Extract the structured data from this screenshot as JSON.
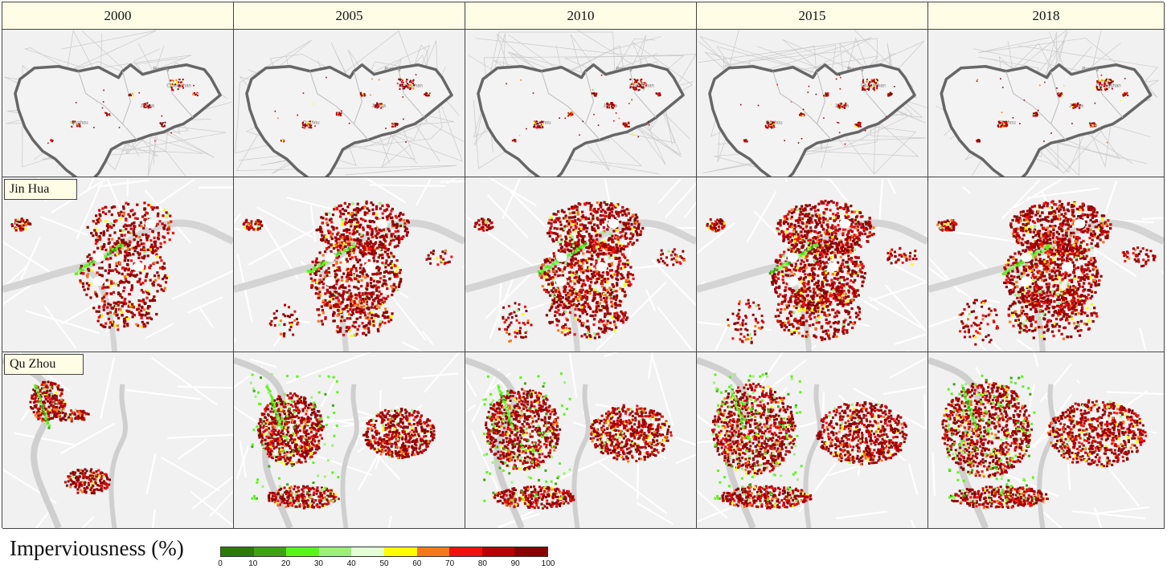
{
  "years": [
    "2000",
    "2005",
    "2010",
    "2015",
    "2018"
  ],
  "rows": [
    {
      "key": "region",
      "label": ""
    },
    {
      "key": "jinhua",
      "label": "Jin Hua"
    },
    {
      "key": "quzhou",
      "label": "Qu Zhou"
    }
  ],
  "region_place_labels": [
    "Puyang",
    "Changshan",
    "Jinhua",
    "Quzhou"
  ],
  "legend": {
    "title": "Imperviousness (%)",
    "ticks": [
      "0",
      "10",
      "20",
      "30",
      "40",
      "50",
      "60",
      "70",
      "80",
      "90",
      "100"
    ],
    "colors": [
      "#2d7a0c",
      "#3fa214",
      "#5bf41a",
      "#9ff07a",
      "#e2ffd6",
      "#ffff00",
      "#f6781c",
      "#f01010",
      "#b80000",
      "#8a0000"
    ]
  },
  "expansion_by_year": [
    0.45,
    0.75,
    0.85,
    0.95,
    1.0
  ]
}
